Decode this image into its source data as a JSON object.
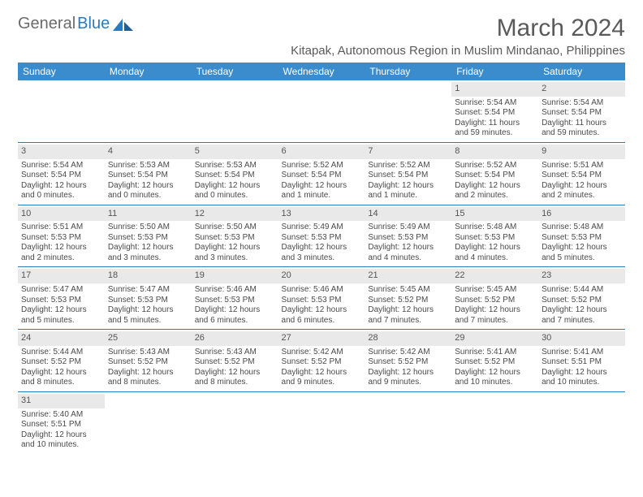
{
  "logo": {
    "part1": "General",
    "part2": "Blue"
  },
  "title": "March 2024",
  "subtitle": "Kitapak, Autonomous Region in Muslim Mindanao, Philippines",
  "colors": {
    "header_bg": "#3a8ccc",
    "header_text": "#ffffff",
    "daynum_bg": "#e9e9e9",
    "row_border": "#2b7bbf",
    "page_bg": "#ffffff",
    "text": "#4a4a4a",
    "logo_general": "#6b6b6b",
    "logo_blue": "#2b7bbf"
  },
  "day_headers": [
    "Sunday",
    "Monday",
    "Tuesday",
    "Wednesday",
    "Thursday",
    "Friday",
    "Saturday"
  ],
  "weeks": [
    [
      {
        "n": "",
        "sr": "",
        "ss": "",
        "d1": "",
        "d2": ""
      },
      {
        "n": "",
        "sr": "",
        "ss": "",
        "d1": "",
        "d2": ""
      },
      {
        "n": "",
        "sr": "",
        "ss": "",
        "d1": "",
        "d2": ""
      },
      {
        "n": "",
        "sr": "",
        "ss": "",
        "d1": "",
        "d2": ""
      },
      {
        "n": "",
        "sr": "",
        "ss": "",
        "d1": "",
        "d2": ""
      },
      {
        "n": "1",
        "sr": "Sunrise: 5:54 AM",
        "ss": "Sunset: 5:54 PM",
        "d1": "Daylight: 11 hours",
        "d2": "and 59 minutes."
      },
      {
        "n": "2",
        "sr": "Sunrise: 5:54 AM",
        "ss": "Sunset: 5:54 PM",
        "d1": "Daylight: 11 hours",
        "d2": "and 59 minutes."
      }
    ],
    [
      {
        "n": "3",
        "sr": "Sunrise: 5:54 AM",
        "ss": "Sunset: 5:54 PM",
        "d1": "Daylight: 12 hours",
        "d2": "and 0 minutes."
      },
      {
        "n": "4",
        "sr": "Sunrise: 5:53 AM",
        "ss": "Sunset: 5:54 PM",
        "d1": "Daylight: 12 hours",
        "d2": "and 0 minutes."
      },
      {
        "n": "5",
        "sr": "Sunrise: 5:53 AM",
        "ss": "Sunset: 5:54 PM",
        "d1": "Daylight: 12 hours",
        "d2": "and 0 minutes."
      },
      {
        "n": "6",
        "sr": "Sunrise: 5:52 AM",
        "ss": "Sunset: 5:54 PM",
        "d1": "Daylight: 12 hours",
        "d2": "and 1 minute."
      },
      {
        "n": "7",
        "sr": "Sunrise: 5:52 AM",
        "ss": "Sunset: 5:54 PM",
        "d1": "Daylight: 12 hours",
        "d2": "and 1 minute."
      },
      {
        "n": "8",
        "sr": "Sunrise: 5:52 AM",
        "ss": "Sunset: 5:54 PM",
        "d1": "Daylight: 12 hours",
        "d2": "and 2 minutes."
      },
      {
        "n": "9",
        "sr": "Sunrise: 5:51 AM",
        "ss": "Sunset: 5:54 PM",
        "d1": "Daylight: 12 hours",
        "d2": "and 2 minutes."
      }
    ],
    [
      {
        "n": "10",
        "sr": "Sunrise: 5:51 AM",
        "ss": "Sunset: 5:53 PM",
        "d1": "Daylight: 12 hours",
        "d2": "and 2 minutes."
      },
      {
        "n": "11",
        "sr": "Sunrise: 5:50 AM",
        "ss": "Sunset: 5:53 PM",
        "d1": "Daylight: 12 hours",
        "d2": "and 3 minutes."
      },
      {
        "n": "12",
        "sr": "Sunrise: 5:50 AM",
        "ss": "Sunset: 5:53 PM",
        "d1": "Daylight: 12 hours",
        "d2": "and 3 minutes."
      },
      {
        "n": "13",
        "sr": "Sunrise: 5:49 AM",
        "ss": "Sunset: 5:53 PM",
        "d1": "Daylight: 12 hours",
        "d2": "and 3 minutes."
      },
      {
        "n": "14",
        "sr": "Sunrise: 5:49 AM",
        "ss": "Sunset: 5:53 PM",
        "d1": "Daylight: 12 hours",
        "d2": "and 4 minutes."
      },
      {
        "n": "15",
        "sr": "Sunrise: 5:48 AM",
        "ss": "Sunset: 5:53 PM",
        "d1": "Daylight: 12 hours",
        "d2": "and 4 minutes."
      },
      {
        "n": "16",
        "sr": "Sunrise: 5:48 AM",
        "ss": "Sunset: 5:53 PM",
        "d1": "Daylight: 12 hours",
        "d2": "and 5 minutes."
      }
    ],
    [
      {
        "n": "17",
        "sr": "Sunrise: 5:47 AM",
        "ss": "Sunset: 5:53 PM",
        "d1": "Daylight: 12 hours",
        "d2": "and 5 minutes."
      },
      {
        "n": "18",
        "sr": "Sunrise: 5:47 AM",
        "ss": "Sunset: 5:53 PM",
        "d1": "Daylight: 12 hours",
        "d2": "and 5 minutes."
      },
      {
        "n": "19",
        "sr": "Sunrise: 5:46 AM",
        "ss": "Sunset: 5:53 PM",
        "d1": "Daylight: 12 hours",
        "d2": "and 6 minutes."
      },
      {
        "n": "20",
        "sr": "Sunrise: 5:46 AM",
        "ss": "Sunset: 5:53 PM",
        "d1": "Daylight: 12 hours",
        "d2": "and 6 minutes."
      },
      {
        "n": "21",
        "sr": "Sunrise: 5:45 AM",
        "ss": "Sunset: 5:52 PM",
        "d1": "Daylight: 12 hours",
        "d2": "and 7 minutes."
      },
      {
        "n": "22",
        "sr": "Sunrise: 5:45 AM",
        "ss": "Sunset: 5:52 PM",
        "d1": "Daylight: 12 hours",
        "d2": "and 7 minutes."
      },
      {
        "n": "23",
        "sr": "Sunrise: 5:44 AM",
        "ss": "Sunset: 5:52 PM",
        "d1": "Daylight: 12 hours",
        "d2": "and 7 minutes."
      }
    ],
    [
      {
        "n": "24",
        "sr": "Sunrise: 5:44 AM",
        "ss": "Sunset: 5:52 PM",
        "d1": "Daylight: 12 hours",
        "d2": "and 8 minutes."
      },
      {
        "n": "25",
        "sr": "Sunrise: 5:43 AM",
        "ss": "Sunset: 5:52 PM",
        "d1": "Daylight: 12 hours",
        "d2": "and 8 minutes."
      },
      {
        "n": "26",
        "sr": "Sunrise: 5:43 AM",
        "ss": "Sunset: 5:52 PM",
        "d1": "Daylight: 12 hours",
        "d2": "and 8 minutes."
      },
      {
        "n": "27",
        "sr": "Sunrise: 5:42 AM",
        "ss": "Sunset: 5:52 PM",
        "d1": "Daylight: 12 hours",
        "d2": "and 9 minutes."
      },
      {
        "n": "28",
        "sr": "Sunrise: 5:42 AM",
        "ss": "Sunset: 5:52 PM",
        "d1": "Daylight: 12 hours",
        "d2": "and 9 minutes."
      },
      {
        "n": "29",
        "sr": "Sunrise: 5:41 AM",
        "ss": "Sunset: 5:52 PM",
        "d1": "Daylight: 12 hours",
        "d2": "and 10 minutes."
      },
      {
        "n": "30",
        "sr": "Sunrise: 5:41 AM",
        "ss": "Sunset: 5:51 PM",
        "d1": "Daylight: 12 hours",
        "d2": "and 10 minutes."
      }
    ],
    [
      {
        "n": "31",
        "sr": "Sunrise: 5:40 AM",
        "ss": "Sunset: 5:51 PM",
        "d1": "Daylight: 12 hours",
        "d2": "and 10 minutes."
      },
      {
        "n": "",
        "sr": "",
        "ss": "",
        "d1": "",
        "d2": ""
      },
      {
        "n": "",
        "sr": "",
        "ss": "",
        "d1": "",
        "d2": ""
      },
      {
        "n": "",
        "sr": "",
        "ss": "",
        "d1": "",
        "d2": ""
      },
      {
        "n": "",
        "sr": "",
        "ss": "",
        "d1": "",
        "d2": ""
      },
      {
        "n": "",
        "sr": "",
        "ss": "",
        "d1": "",
        "d2": ""
      },
      {
        "n": "",
        "sr": "",
        "ss": "",
        "d1": "",
        "d2": ""
      }
    ]
  ]
}
